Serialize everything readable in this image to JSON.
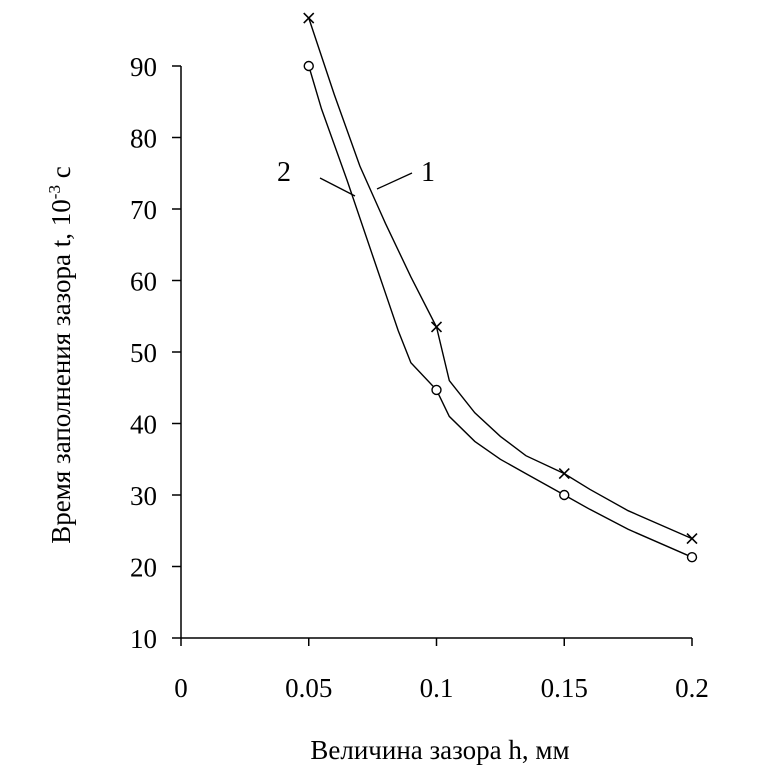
{
  "chart_data": {
    "type": "line",
    "title": "",
    "xlabel": "Величина зазора h, мм",
    "ylabel": "Время заполнения зазора t, 10",
    "ylabel_exp": "-3",
    "ylabel_unit": " с",
    "xlim": [
      0,
      0.2
    ],
    "ylim": [
      10,
      95
    ],
    "x_ticks": [
      0,
      0.05,
      0.1,
      0.15,
      0.2
    ],
    "x_tick_labels": [
      "0",
      "0.05",
      "0.1",
      "0.15",
      "0.2"
    ],
    "y_ticks": [
      10,
      20,
      30,
      40,
      50,
      60,
      70,
      80,
      90
    ],
    "y_tick_labels": [
      "10",
      "20",
      "30",
      "40",
      "50",
      "60",
      "70",
      "80",
      "90"
    ],
    "grid": false,
    "series": [
      {
        "name": "1",
        "marker": "cross",
        "x": [
          0.05,
          0.1,
          0.15,
          0.2
        ],
        "values": [
          96.7,
          53.5,
          33,
          23.9
        ],
        "curve_x": [
          0.05,
          0.06,
          0.07,
          0.08,
          0.09,
          0.1,
          0.105,
          0.115,
          0.125,
          0.135,
          0.15,
          0.16,
          0.175,
          0.2
        ],
        "curve_y": [
          96.7,
          86,
          76,
          68,
          60.5,
          53.5,
          46,
          41.5,
          38.2,
          35.5,
          33,
          30.8,
          27.8,
          23.9
        ]
      },
      {
        "name": "2",
        "marker": "circle",
        "x": [
          0.05,
          0.1,
          0.15,
          0.2
        ],
        "values": [
          90,
          44.7,
          30,
          21.3
        ],
        "curve_x": [
          0.05,
          0.055,
          0.065,
          0.075,
          0.085,
          0.09,
          0.1,
          0.105,
          0.115,
          0.125,
          0.135,
          0.15,
          0.16,
          0.175,
          0.2
        ],
        "curve_y": [
          90,
          84,
          74,
          63.5,
          53,
          48.5,
          44.7,
          41,
          37.5,
          35,
          33,
          30,
          28,
          25.2,
          21.3
        ]
      }
    ]
  }
}
